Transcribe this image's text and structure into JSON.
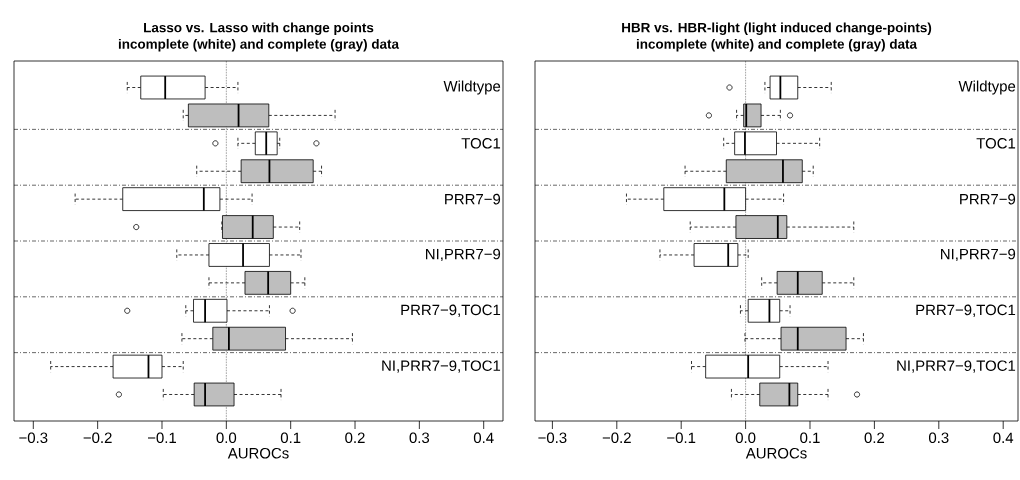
{
  "chart_data": [
    {
      "type": "box",
      "orientation": "horizontal",
      "title": "Lasso vs. Lasso with change points",
      "subtitle": "incomplete (white) and complete (gray) data",
      "xlabel": "AUROCs",
      "categories": [
        "Wildtype",
        null,
        "TOC1",
        null,
        "PRR7−9",
        null,
        "NI,PRR7−9",
        null,
        "PRR7−9,TOC1",
        null,
        "NI,PRR7−9,TOC1",
        null
      ],
      "colors": [
        "#ffffff",
        "#bebebe",
        "#ffffff",
        "#bebebe",
        "#ffffff",
        "#bebebe",
        "#ffffff",
        "#bebebe",
        "#ffffff",
        "#bebebe",
        "#ffffff",
        "#bebebe"
      ],
      "boxes": [
        {
          "low": -0.154,
          "q1": -0.133,
          "median": -0.095,
          "q3": -0.033,
          "high": 0.018
        },
        {
          "low": -0.067,
          "q1": -0.059,
          "median": 0.019,
          "q3": 0.066,
          "high": 0.169
        },
        {
          "low": 0.018,
          "q1": 0.045,
          "median": 0.062,
          "q3": 0.079,
          "high": 0.083,
          "outliers": [
            -0.017,
            0.14
          ]
        },
        {
          "low": -0.046,
          "q1": 0.023,
          "median": 0.067,
          "q3": 0.135,
          "high": 0.148
        },
        {
          "low": -0.235,
          "q1": -0.161,
          "median": -0.035,
          "q3": -0.01,
          "high": 0.04
        },
        {
          "low": -0.007,
          "q1": -0.006,
          "median": 0.041,
          "q3": 0.073,
          "high": 0.114,
          "outliers": [
            -0.14
          ]
        },
        {
          "low": -0.077,
          "q1": -0.027,
          "median": 0.026,
          "q3": 0.067,
          "high": 0.116
        },
        {
          "low": -0.027,
          "q1": 0.029,
          "median": 0.065,
          "q3": 0.1,
          "high": 0.122
        },
        {
          "low": -0.063,
          "q1": -0.051,
          "median": -0.033,
          "q3": 0.001,
          "high": 0.067,
          "outliers": [
            -0.154,
            0.103
          ]
        },
        {
          "low": -0.069,
          "q1": -0.021,
          "median": 0.004,
          "q3": 0.092,
          "high": 0.196
        },
        {
          "low": -0.273,
          "q1": -0.176,
          "median": -0.121,
          "q3": -0.1,
          "high": -0.067
        },
        {
          "low": -0.098,
          "q1": -0.05,
          "median": -0.033,
          "q3": 0.012,
          "high": 0.085,
          "outliers": [
            -0.167
          ]
        }
      ],
      "xlim": [
        -0.33,
        0.43
      ],
      "xticks": [
        {
          "value": -0.3,
          "label": "−0.3"
        },
        {
          "value": -0.2,
          "label": "−0.2"
        },
        {
          "value": -0.1,
          "label": "−0.1"
        },
        {
          "value": 0,
          "label": "0.0"
        },
        {
          "value": 0.1,
          "label": "0.1"
        },
        {
          "value": 0.2,
          "label": "0.2"
        },
        {
          "value": 0.3,
          "label": "0.3"
        },
        {
          "value": 0.4,
          "label": "0.4"
        }
      ],
      "ref_lines": [
        {
          "axis": "x",
          "value": 0,
          "line_style": "dotted"
        }
      ]
    },
    {
      "type": "box",
      "orientation": "horizontal",
      "title": "HBR vs. HBR-light (light induced change-points)",
      "subtitle": "incomplete (white) and complete (gray) data",
      "xlabel": "AUROCs",
      "categories": [
        "Wildtype",
        null,
        "TOC1",
        null,
        "PRR7−9",
        null,
        "NI,PRR7−9",
        null,
        "PRR7−9,TOC1",
        null,
        "NI,PRR7−9,TOC1",
        null
      ],
      "colors": [
        "#ffffff",
        "#bebebe",
        "#ffffff",
        "#bebebe",
        "#ffffff",
        "#bebebe",
        "#ffffff",
        "#bebebe",
        "#ffffff",
        "#bebebe",
        "#ffffff",
        "#bebebe"
      ],
      "boxes": [
        {
          "low": 0.03,
          "q1": 0.038,
          "median": 0.054,
          "q3": 0.081,
          "high": 0.133,
          "outliers": [
            -0.025
          ]
        },
        {
          "low": -0.014,
          "q1": -0.003,
          "median": 0.001,
          "q3": 0.024,
          "high": 0.054,
          "outliers": [
            -0.057,
            0.069
          ]
        },
        {
          "low": -0.034,
          "q1": -0.017,
          "median": -0.001,
          "q3": 0.048,
          "high": 0.115
        },
        {
          "low": -0.094,
          "q1": -0.03,
          "median": 0.058,
          "q3": 0.088,
          "high": 0.105
        },
        {
          "low": -0.185,
          "q1": -0.127,
          "median": -0.033,
          "q3": 0.0,
          "high": 0.059
        },
        {
          "low": -0.086,
          "q1": -0.015,
          "median": 0.05,
          "q3": 0.064,
          "high": 0.168
        },
        {
          "low": -0.133,
          "q1": -0.08,
          "median": -0.027,
          "q3": -0.012,
          "high": 0.004
        },
        {
          "low": 0.025,
          "q1": 0.049,
          "median": 0.081,
          "q3": 0.119,
          "high": 0.168
        },
        {
          "low": -0.008,
          "q1": 0.004,
          "median": 0.037,
          "q3": 0.053,
          "high": 0.069
        },
        {
          "low": -0.001,
          "q1": 0.055,
          "median": 0.081,
          "q3": 0.156,
          "high": 0.183
        },
        {
          "low": -0.084,
          "q1": -0.062,
          "median": 0.004,
          "q3": 0.053,
          "high": 0.128
        },
        {
          "low": -0.022,
          "q1": 0.022,
          "median": 0.068,
          "q3": 0.081,
          "high": 0.128,
          "outliers": [
            0.173
          ]
        }
      ],
      "xlim": [
        -0.327,
        0.423
      ],
      "xticks": [
        {
          "value": -0.3,
          "label": "−0.3"
        },
        {
          "value": -0.2,
          "label": "−0.2"
        },
        {
          "value": -0.1,
          "label": "−0.1"
        },
        {
          "value": 0,
          "label": "0.0"
        },
        {
          "value": 0.1,
          "label": "0.1"
        },
        {
          "value": 0.2,
          "label": "0.2"
        },
        {
          "value": 0.3,
          "label": "0.3"
        },
        {
          "value": 0.4,
          "label": "0.4"
        }
      ],
      "ref_lines": [
        {
          "axis": "x",
          "value": 0,
          "line_style": "dotted"
        }
      ]
    }
  ]
}
